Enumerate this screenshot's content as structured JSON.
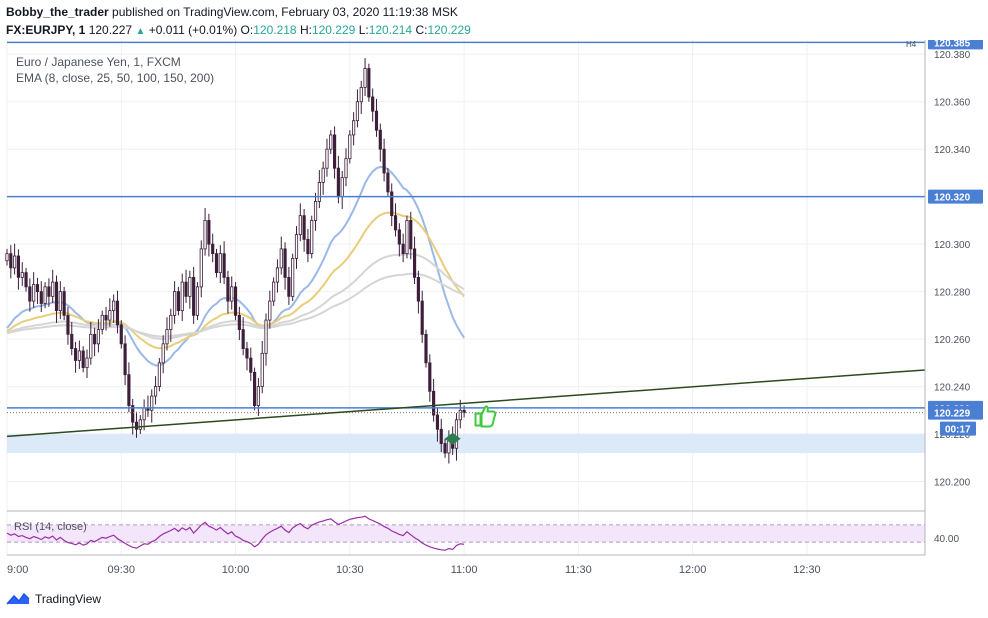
{
  "header": {
    "author": "Bobby_the_trader",
    "published_text": "published on TradingView.com, February 03, 2020 11:19:38 MSK",
    "symbol": "FX:EURJPY, 1",
    "last": "120.227",
    "change_arrow": "▲",
    "change": "+0.011 (+0.01%)",
    "o_label": "O:",
    "o": "120.218",
    "h_label": "H:",
    "h": "120.229",
    "l_label": "L:",
    "l": "120.214",
    "c_label": "C:",
    "c": "120.229"
  },
  "legend": {
    "instrument": "Euro / Japanese Yen, 1, FXCM",
    "ema": "EMA (8, close, 25, 50, 100, 150, 200)",
    "rsi": "RSI (14, close)",
    "timeframe_badge": "H4"
  },
  "footer": {
    "brand": "TradingView",
    "logo_icon": "tradingview-logo-icon"
  },
  "colors": {
    "level_line": "#4a7fd4",
    "trend_line": "#2d4a1e",
    "up_body": "#ffffff",
    "down_body": "#3d1f3a",
    "ema_fast": "#9ab8e8",
    "ema_mid": "#e8cd7a",
    "ema_slow": "#d5d5d5",
    "rsi_line": "#9b2ea8",
    "rsi_band": "#f3e6fa",
    "zone": "#dce9f9",
    "thumb": "#3ec93e",
    "marker": "#2e7d4f"
  },
  "chart_data": {
    "type": "candlestick",
    "y_range": [
      120.188,
      120.386
    ],
    "price_ticks": [
      "120.380",
      "120.360",
      "120.340",
      "120.320",
      "120.300",
      "120.280",
      "120.260",
      "120.240",
      "120.220",
      "120.200"
    ],
    "price_tick_values": [
      120.38,
      120.36,
      120.34,
      120.32,
      120.3,
      120.28,
      120.26,
      120.24,
      120.22,
      120.2
    ],
    "time_labels": [
      "9:00",
      "09:30",
      "10:00",
      "10:30",
      "11:00",
      "11:30",
      "12:00",
      "12:30"
    ],
    "time_label_minutes": [
      0,
      30,
      60,
      90,
      120,
      150,
      180,
      210
    ],
    "levels": [
      {
        "value": 120.385,
        "label": "120.385"
      },
      {
        "value": 120.32,
        "label": "120.320"
      },
      {
        "value": 120.231,
        "label": "120.231"
      }
    ],
    "current_price": {
      "value": 120.229,
      "label": "120.229"
    },
    "countdown": "00:17",
    "zone": [
      120.212,
      120.22
    ],
    "trendline": {
      "start": [
        0,
        120.219
      ],
      "end": [
        241,
        120.247
      ]
    },
    "rsi": {
      "ticks": [
        "40.00"
      ],
      "upper": 70,
      "lower": 30,
      "tick_value": 40
    },
    "candles_start_minute": 0,
    "candles_close": [
      120.296,
      120.29,
      120.295,
      120.286,
      120.288,
      120.282,
      120.276,
      120.283,
      120.28,
      120.275,
      120.282,
      120.278,
      120.284,
      120.272,
      120.28,
      120.27,
      120.262,
      120.256,
      120.251,
      120.255,
      120.248,
      120.252,
      120.262,
      120.258,
      120.264,
      120.27,
      120.268,
      120.272,
      120.276,
      120.266,
      120.258,
      120.245,
      120.232,
      120.225,
      120.222,
      120.226,
      120.231,
      120.23,
      120.236,
      120.24,
      120.25,
      120.258,
      120.264,
      120.27,
      120.28,
      120.272,
      120.284,
      120.278,
      120.286,
      120.27,
      120.282,
      120.298,
      120.31,
      120.3,
      120.296,
      120.288,
      120.296,
      120.286,
      120.276,
      120.282,
      120.27,
      120.264,
      120.256,
      120.252,
      120.246,
      120.232,
      120.24,
      120.254,
      120.268,
      120.276,
      120.284,
      120.29,
      120.298,
      120.286,
      120.278,
      120.294,
      120.304,
      120.312,
      120.302,
      120.296,
      120.31,
      120.318,
      120.326,
      120.332,
      120.34,
      120.346,
      120.332,
      120.32,
      120.328,
      120.336,
      120.346,
      120.352,
      120.36,
      120.366,
      120.374,
      120.362,
      120.356,
      120.348,
      120.34,
      120.33,
      120.322,
      120.312,
      120.306,
      120.3,
      120.296,
      120.31,
      120.298,
      120.286,
      120.276,
      120.262,
      120.25,
      120.238,
      120.228,
      120.222,
      120.216,
      120.212,
      120.218,
      120.214,
      120.226,
      120.23,
      120.229
    ],
    "rsi_values": [
      51,
      46,
      49,
      43,
      45,
      41,
      38,
      43,
      40,
      36,
      42,
      39,
      44,
      35,
      41,
      34,
      29,
      27,
      24,
      28,
      23,
      26,
      34,
      31,
      36,
      41,
      39,
      43,
      46,
      38,
      33,
      27,
      22,
      18,
      16,
      21,
      26,
      25,
      31,
      35,
      43,
      49,
      53,
      57,
      62,
      55,
      63,
      58,
      64,
      51,
      60,
      70,
      76,
      67,
      63,
      58,
      64,
      56,
      49,
      54,
      44,
      40,
      34,
      31,
      27,
      19,
      25,
      37,
      47,
      53,
      58,
      62,
      67,
      58,
      52,
      63,
      69,
      73,
      65,
      61,
      69,
      73,
      77,
      79,
      82,
      84,
      77,
      71,
      75,
      79,
      83,
      85,
      87,
      88,
      90,
      84,
      80,
      76,
      72,
      66,
      62,
      56,
      52,
      48,
      45,
      54,
      47,
      40,
      35,
      28,
      23,
      19,
      16,
      14,
      12,
      11,
      15,
      13,
      22,
      26,
      25
    ]
  }
}
